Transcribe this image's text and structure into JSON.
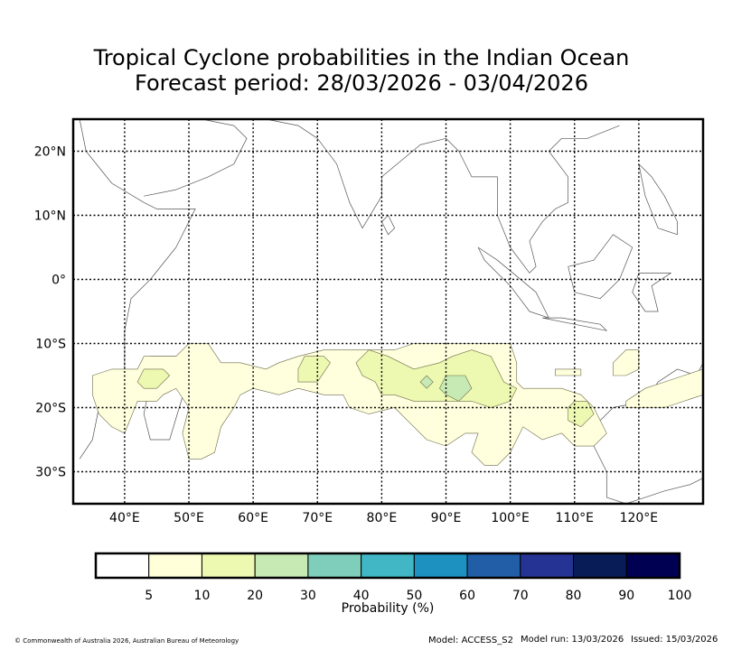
{
  "title": "Tropical Cyclone probabilities in the Indian Ocean",
  "subtitle": "Forecast period: 28/03/2026 - 03/04/2026",
  "chart_data": {
    "type": "heatmap",
    "map_region": "Indian Ocean",
    "lon_range": [
      32,
      130
    ],
    "lat_range": [
      -35,
      25
    ],
    "x_ticks": [
      40,
      50,
      60,
      70,
      80,
      90,
      100,
      110,
      120
    ],
    "x_tick_labels": [
      "40°E",
      "50°E",
      "60°E",
      "70°E",
      "80°E",
      "90°E",
      "100°E",
      "110°E",
      "120°E"
    ],
    "y_ticks": [
      20,
      10,
      0,
      -10,
      -20,
      -30
    ],
    "y_tick_labels": [
      "20°N",
      "10°N",
      "0°",
      "10°S",
      "20°S",
      "30°S"
    ],
    "grid": true,
    "probability_regions": [
      {
        "level": "5-10",
        "color": "#ffffdd",
        "polygon": [
          [
            35,
            -15
          ],
          [
            38,
            -14
          ],
          [
            42,
            -14
          ],
          [
            43,
            -12
          ],
          [
            48,
            -12
          ],
          [
            50,
            -10
          ],
          [
            53,
            -10
          ],
          [
            55,
            -13
          ],
          [
            58,
            -13
          ],
          [
            62,
            -14
          ],
          [
            64,
            -13
          ],
          [
            67,
            -12
          ],
          [
            71,
            -11
          ],
          [
            75,
            -11
          ],
          [
            79,
            -11
          ],
          [
            82,
            -11
          ],
          [
            85,
            -10
          ],
          [
            90,
            -10
          ],
          [
            95,
            -10
          ],
          [
            100,
            -10
          ],
          [
            101,
            -13
          ],
          [
            101,
            -16
          ],
          [
            102,
            -17
          ],
          [
            105,
            -17
          ],
          [
            108,
            -17
          ],
          [
            111,
            -18
          ],
          [
            113,
            -20
          ],
          [
            114,
            -22
          ],
          [
            115,
            -24
          ],
          [
            113,
            -26
          ],
          [
            110,
            -26
          ],
          [
            108,
            -24
          ],
          [
            105,
            -25
          ],
          [
            102,
            -23
          ],
          [
            101,
            -25
          ],
          [
            100,
            -27
          ],
          [
            98,
            -29
          ],
          [
            96,
            -29
          ],
          [
            94,
            -27
          ],
          [
            95,
            -24
          ],
          [
            93,
            -24
          ],
          [
            90,
            -26
          ],
          [
            87,
            -25
          ],
          [
            85,
            -23
          ],
          [
            84,
            -22
          ],
          [
            82,
            -20
          ],
          [
            78,
            -21
          ],
          [
            75,
            -20
          ],
          [
            74,
            -18
          ],
          [
            71,
            -18
          ],
          [
            67,
            -17
          ],
          [
            64,
            -18
          ],
          [
            60,
            -17
          ],
          [
            58,
            -18
          ],
          [
            57,
            -20
          ],
          [
            55,
            -23
          ],
          [
            54,
            -27
          ],
          [
            52,
            -28
          ],
          [
            50,
            -28
          ],
          [
            49,
            -24
          ],
          [
            50,
            -20
          ],
          [
            48,
            -17
          ],
          [
            46,
            -18
          ],
          [
            45,
            -19
          ],
          [
            42,
            -19
          ],
          [
            40,
            -24
          ],
          [
            38,
            -23
          ],
          [
            36,
            -21
          ],
          [
            35,
            -18
          ]
        ]
      },
      {
        "level": "5-10",
        "color": "#ffffdd",
        "polygon": [
          [
            116,
            -13
          ],
          [
            118,
            -11
          ],
          [
            120,
            -11
          ],
          [
            120,
            -14
          ],
          [
            118,
            -15
          ],
          [
            116,
            -15
          ]
        ]
      },
      {
        "level": "5-10",
        "color": "#ffffdd",
        "polygon": [
          [
            118,
            -19
          ],
          [
            121,
            -17
          ],
          [
            124,
            -16
          ],
          [
            127,
            -15
          ],
          [
            130,
            -14
          ],
          [
            130,
            -18
          ],
          [
            127,
            -19
          ],
          [
            124,
            -20
          ],
          [
            121,
            -20
          ],
          [
            118,
            -20
          ]
        ]
      },
      {
        "level": "5-10",
        "color": "#ffffdd",
        "polygon": [
          [
            107,
            -14
          ],
          [
            111,
            -14
          ],
          [
            111,
            -15
          ],
          [
            107,
            -15
          ]
        ]
      },
      {
        "level": "10-20",
        "color": "#edf8b1",
        "polygon": [
          [
            43,
            -14
          ],
          [
            46,
            -14
          ],
          [
            47,
            -15
          ],
          [
            45,
            -17
          ],
          [
            43,
            -17
          ],
          [
            42,
            -16
          ]
        ]
      },
      {
        "level": "10-20",
        "color": "#edf8b1",
        "polygon": [
          [
            67,
            -14
          ],
          [
            68,
            -12
          ],
          [
            71,
            -12
          ],
          [
            72,
            -13
          ],
          [
            70,
            -16
          ],
          [
            67,
            -16
          ]
        ]
      },
      {
        "level": "10-20",
        "color": "#edf8b1",
        "polygon": [
          [
            76,
            -13
          ],
          [
            78,
            -11
          ],
          [
            81,
            -12
          ],
          [
            85,
            -14
          ],
          [
            89,
            -13
          ],
          [
            91,
            -12
          ],
          [
            94,
            -11
          ],
          [
            97,
            -12
          ],
          [
            98,
            -14
          ],
          [
            99,
            -16
          ],
          [
            101,
            -17
          ],
          [
            100,
            -19
          ],
          [
            97,
            -20
          ],
          [
            94,
            -19
          ],
          [
            91,
            -19
          ],
          [
            88,
            -19
          ],
          [
            85,
            -19
          ],
          [
            82,
            -18
          ],
          [
            80,
            -18
          ],
          [
            79,
            -16
          ],
          [
            77,
            -15
          ]
        ]
      },
      {
        "level": "10-20",
        "color": "#edf8b1",
        "polygon": [
          [
            109,
            -20
          ],
          [
            110,
            -19
          ],
          [
            112,
            -19
          ],
          [
            113,
            -21
          ],
          [
            111,
            -23
          ],
          [
            109,
            -22
          ]
        ]
      },
      {
        "level": "20-30",
        "color": "#c7e9b4",
        "polygon": [
          [
            89,
            -17
          ],
          [
            90,
            -15
          ],
          [
            93,
            -15
          ],
          [
            94,
            -17
          ],
          [
            92,
            -19
          ],
          [
            90,
            -18
          ]
        ]
      },
      {
        "level": "20-30",
        "color": "#c7e9b4",
        "polygon": [
          [
            86,
            -16
          ],
          [
            87,
            -15
          ],
          [
            88,
            -16
          ],
          [
            87,
            -17
          ]
        ]
      }
    ],
    "legend": {
      "label": "Probability (%)",
      "tick_labels": [
        "5",
        "10",
        "20",
        "30",
        "40",
        "50",
        "60",
        "70",
        "80",
        "90",
        "100"
      ],
      "colors": [
        "#ffffff",
        "#ffffd9",
        "#edf8b1",
        "#c7e9b4",
        "#7fcdbb",
        "#41b6c4",
        "#1d91c0",
        "#225ea8",
        "#253494",
        "#081d58",
        "#000052"
      ]
    }
  },
  "footer": {
    "copyright": "© Commonwealth of Australia 2026, Australian Bureau of Meteorology",
    "model": "Model: ACCESS_S2",
    "model_run": "Model run: 13/03/2026",
    "issued": "Issued: 15/03/2026"
  }
}
